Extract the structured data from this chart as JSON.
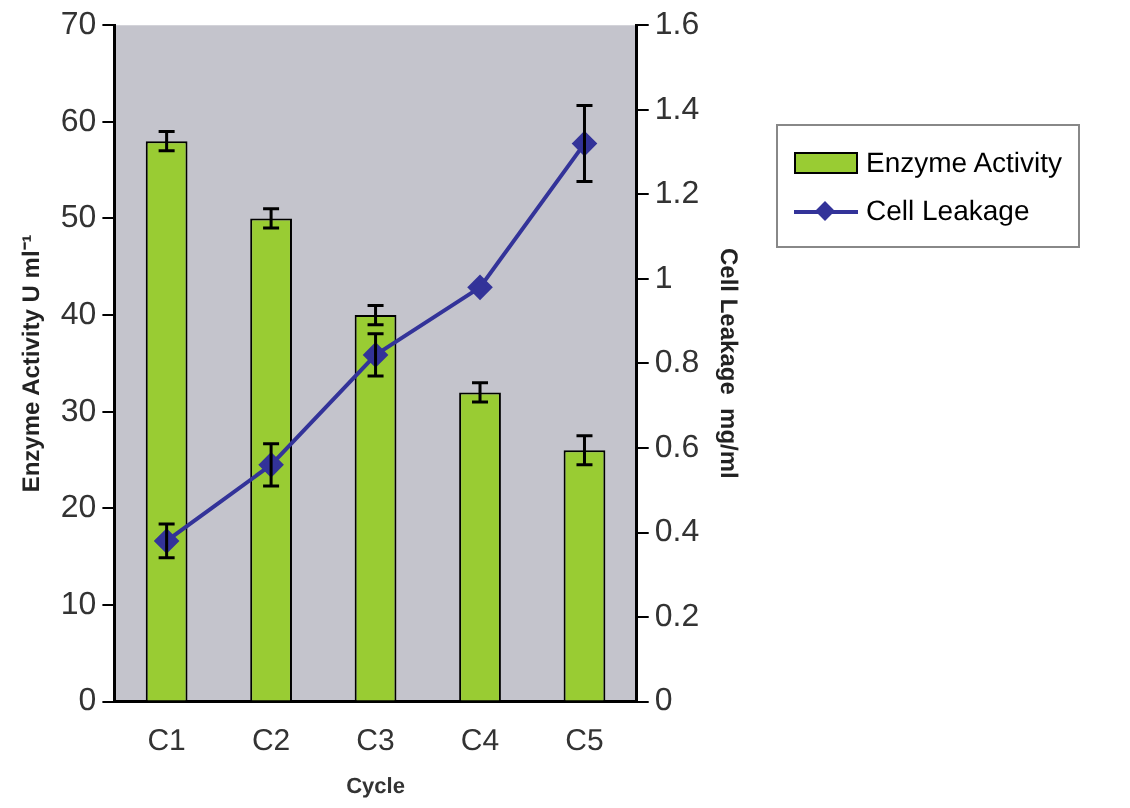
{
  "chart_data": {
    "type": "bar",
    "xlabel": "Cycle",
    "ylabel": "Enzyme Activity U ml⁻¹",
    "y2label": "Cell Leakage  mg/ml",
    "categories": [
      "C1",
      "C2",
      "C3",
      "C4",
      "C5"
    ],
    "series": [
      {
        "name": "Enzyme Activity",
        "color": "#99cc33",
        "values": [
          58,
          50,
          40,
          32,
          26
        ],
        "errors": [
          1,
          1,
          1,
          1,
          1.5
        ]
      },
      {
        "name": "Cell Leakage",
        "type": "line",
        "axis": "y2",
        "color": "#333399",
        "values": [
          0.38,
          0.56,
          0.82,
          0.98,
          1.32
        ],
        "errors": [
          0.04,
          0.05,
          0.05,
          null,
          0.09
        ],
        "marker": "diamond"
      }
    ],
    "ylim": [
      0,
      70
    ],
    "yticks": [
      0,
      10,
      20,
      30,
      40,
      50,
      60,
      70
    ],
    "y2lim": [
      0,
      1.6
    ],
    "y2ticks": [
      0,
      0.2,
      0.4,
      0.6,
      0.8,
      1,
      1.2,
      1.4,
      1.6
    ],
    "grid": false,
    "legend": "right"
  }
}
